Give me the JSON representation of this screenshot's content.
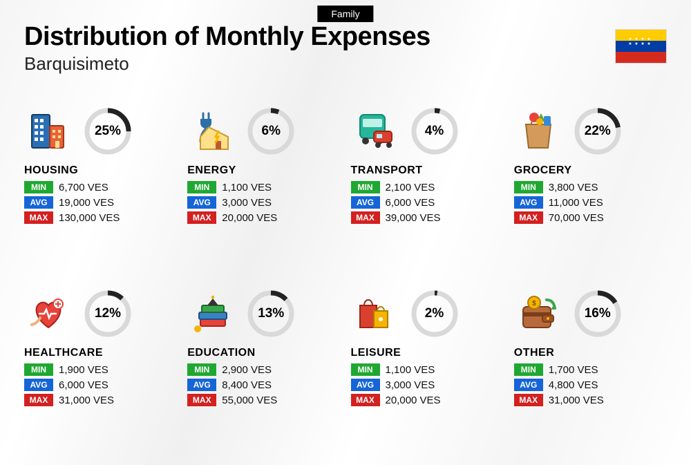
{
  "top_tag": "Family",
  "title": "Distribution of Monthly Expenses",
  "subtitle": "Barquisimeto",
  "flag": {
    "top": "#ffcc00",
    "mid": "#003da5",
    "bot": "#d52b1e"
  },
  "badges": {
    "min": "MIN",
    "avg": "AVG",
    "max": "MAX"
  },
  "badge_colors": {
    "min": "#1fa831",
    "avg": "#1565d8",
    "max": "#d32020"
  },
  "currency": "VES",
  "ring_track": "#d9d9d9",
  "ring_fill": "#222222",
  "categories": [
    {
      "key": "housing",
      "name": "HOUSING",
      "pct": 25,
      "pct_label": "25%",
      "min": "6,700 VES",
      "avg": "19,000 VES",
      "max": "130,000 VES",
      "icon": "building"
    },
    {
      "key": "energy",
      "name": "ENERGY",
      "pct": 6,
      "pct_label": "6%",
      "min": "1,100 VES",
      "avg": "3,000 VES",
      "max": "20,000 VES",
      "icon": "energy"
    },
    {
      "key": "transport",
      "name": "TRANSPORT",
      "pct": 4,
      "pct_label": "4%",
      "min": "2,100 VES",
      "avg": "6,000 VES",
      "max": "39,000 VES",
      "icon": "bus"
    },
    {
      "key": "grocery",
      "name": "GROCERY",
      "pct": 22,
      "pct_label": "22%",
      "min": "3,800 VES",
      "avg": "11,000 VES",
      "max": "70,000 VES",
      "icon": "bag"
    },
    {
      "key": "healthcare",
      "name": "HEALTHCARE",
      "pct": 12,
      "pct_label": "12%",
      "min": "1,900 VES",
      "avg": "6,000 VES",
      "max": "31,000 VES",
      "icon": "heart"
    },
    {
      "key": "education",
      "name": "EDUCATION",
      "pct": 13,
      "pct_label": "13%",
      "min": "2,900 VES",
      "avg": "8,400 VES",
      "max": "55,000 VES",
      "icon": "books"
    },
    {
      "key": "leisure",
      "name": "LEISURE",
      "pct": 2,
      "pct_label": "2%",
      "min": "1,100 VES",
      "avg": "3,000 VES",
      "max": "20,000 VES",
      "icon": "shopping"
    },
    {
      "key": "other",
      "name": "OTHER",
      "pct": 16,
      "pct_label": "16%",
      "min": "1,700 VES",
      "avg": "4,800 VES",
      "max": "31,000 VES",
      "icon": "wallet"
    }
  ],
  "icons": {
    "building": "<svg width='60' height='60' viewBox='0 0 60 60'><rect x='6' y='6' width='26' height='48' rx='2' fill='#2a6fb5' stroke='#163b63' stroke-width='2'/><rect x='10' y='12' width='5' height='5' fill='#fff'/><rect x='18' y='12' width='5' height='5' fill='#fff'/><rect x='10' y='21' width='5' height='5' fill='#fff'/><rect x='18' y='21' width='5' height='5' fill='#fff'/><rect x='10' y='30' width='5' height='5' fill='#fff'/><rect x='18' y='30' width='5' height='5' fill='#fff'/><rect x='10' y='39' width='5' height='5' fill='#fff'/><rect x='18' y='39' width='5' height='5' fill='#fff'/><rect x='32' y='22' width='20' height='32' rx='2' fill='#e8623c' stroke='#a03818' stroke-width='2'/><rect x='36' y='28' width='4' height='4' fill='#ffe08a'/><rect x='44' y='28' width='4' height='4' fill='#ffe08a'/><rect x='36' y='36' width='4' height='4' fill='#ffe08a'/><rect x='44' y='36' width='4' height='4' fill='#ffe08a'/><rect x='40' y='44' width='6' height='10' fill='#ffe08a'/></svg>",
    "energy": "<svg width='60' height='60' viewBox='0 0 60 60'><path d='M18 4 v8 M26 4 v8' stroke='#2e6fa8' stroke-width='3' stroke-linecap='round'/><path d='M14 12 h16 v6 a8 8 0 0 1 -16 0 z' fill='#2e6fa8'/><path d='M22 26 q-8 8 -8 18 h6' stroke='#2e6fa8' stroke-width='3' fill='none'/><path d='M26 24 l28 14 v18 h-40 v-18 z' fill='#ffe08a' stroke='#c99a2e' stroke-width='2'/><rect x='36' y='44' width='8' height='12' fill='#be5a2e'/><path d='M40 30 l-4 8 h4 l-4 8' fill='none' stroke='#f5b400' stroke-width='3' stroke-linecap='round'/></svg>",
    "bus": "<svg width='60' height='60' viewBox='0 0 60 60'><rect x='8' y='6' width='36' height='34' rx='6' fill='#26b69a' stroke='#138a70' stroke-width='2'/><rect x='12' y='12' width='28' height='12' rx='2' fill='#bff2e7'/><circle cx='16' cy='44' r='5' fill='#333'/><circle cx='36' cy='44' r='5' fill='#333'/><rect x='28' y='30' width='26' height='16' rx='4' fill='#d9412e' stroke='#9c2518' stroke-width='2'/><rect x='32' y='34' width='8' height='6' fill='#bfe8f5'/><circle cx='34' cy='50' r='4' fill='#333'/><circle cx='50' cy='50' r='4' fill='#333'/></svg>",
    "bag": "<svg width='60' height='60' viewBox='0 0 60 60'><path d='M12 20 h36 l-4 34 h-28 z' fill='#d39a5b' stroke='#9c6a30' stroke-width='2'/><path d='M20 20 a10 10 0 0 1 20 0' fill='none' stroke='#9c6a30' stroke-width='2'/><circle cx='24' cy='10' r='7' fill='#e7433b'/><path d='M34 4 l6 12 l-12 0 z' fill='#5aa33a'/><rect x='38' y='8' width='10' height='14' rx='2' fill='#368bd6'/><circle cx='32' cy='16' r='5' fill='#f5b400'/></svg>",
    "heart": "<svg width='60' height='60' viewBox='0 0 60 60'><path d='M30 50 C10 36 8 18 20 14 c6 -2 10 4 10 4 s4 -6 10 -4 c12 4 10 22 -10 36 z' fill='#e7433b' stroke='#a8231a' stroke-width='2'/><path d='M16 30 h8 l3 -6 l4 12 l3 -6 h8' fill='none' stroke='#fff' stroke-width='2.5'/><circle cx='44' cy='16' r='7' fill='#fff' stroke='#e7433b' stroke-width='2'/><path d='M44 12 v8 M40 16 h8' stroke='#e7433b' stroke-width='2'/><path d='M6 46 q8 -2 12 -10' fill='none' stroke='#f0b080' stroke-width='4' stroke-linecap='round'/></svg>",
    "books": "<svg width='60' height='60' viewBox='0 0 60 60'><rect x='14' y='38' width='36' height='10' rx='2' fill='#e7433b' stroke='#a8231a' stroke-width='2'/><rect x='12' y='28' width='40' height='10' rx='2' fill='#3a81c4' stroke='#1f4f80' stroke-width='2'/><rect x='16' y='18' width='32' height='10' rx='2' fill='#3aa64c' stroke='#1f6b2e' stroke-width='2'/><path d='M24 18 l8 -10 l8 10 z' fill='#333'/><rect x='30' y='4' width='4' height='4' fill='#f5b400'/><circle cx='10' cy='52' r='5' fill='#f5b400'/></svg>",
    "shopping": "<svg width='60' height='60' viewBox='0 0 60 60'><rect x='8' y='18' width='24' height='32' fill='#d9412e' stroke='#9c2518' stroke-width='2'/><path d='M14 18 a6 8 0 0 1 12 0' fill='none' stroke='#9c2518' stroke-width='2'/><rect x='28' y='26' width='20' height='24' fill='#f5b400' stroke='#b07e00' stroke-width='2'/><path d='M33 26 a5 6 0 0 1 10 0' fill='none' stroke='#b07e00' stroke-width='2'/><circle cx='38' cy='38' r='3' fill='#fff'/></svg>",
    "wallet": "<svg width='60' height='60' viewBox='0 0 60 60'><rect x='8' y='20' width='40' height='30' rx='5' fill='#b86a3e' stroke='#7a3e18' stroke-width='2'/><rect x='8' y='28' width='40' height='6' fill='#7a3e18'/><rect x='36' y='32' width='16' height='10' rx='3' fill='#a05028' stroke='#7a3e18' stroke-width='2'/><circle cx='44' cy='37' r='2' fill='#f5b400'/><circle cx='24' cy='14' r='9' fill='#f5b400' stroke='#b07e00' stroke-width='2'/><text x='24' y='18' font-size='10' text-anchor='middle' fill='#7a5200' font-weight='bold'>$</text><path d='M42 10 q10 0 12 12' fill='none' stroke='#3aa64c' stroke-width='4' stroke-linecap='round'/><path d='M52 18 l4 6 l-8 0 z' fill='#3aa64c'/></svg>"
  }
}
